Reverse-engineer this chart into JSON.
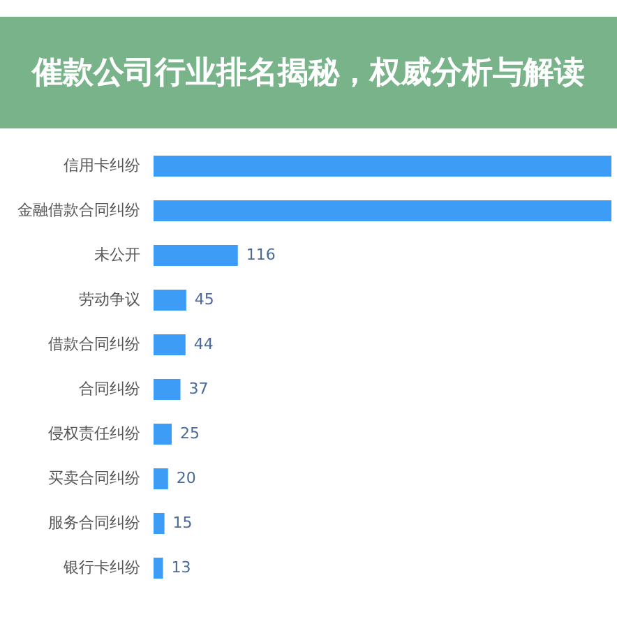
{
  "chart_data": {
    "type": "bar",
    "orientation": "horizontal",
    "title": "催款公司行业排名揭秘，权威分析与解读",
    "categories": [
      "信用卡纠纷",
      "金融借款合同纠纷",
      "未公开",
      "劳动争议",
      "借款合同纠纷",
      "合同纠纷",
      "侵权责任纠纷",
      "买卖合同纠纷",
      "服务合同纠纷",
      "银行卡纠纷"
    ],
    "values": [
      630,
      630,
      116,
      45,
      44,
      37,
      25,
      20,
      15,
      13
    ],
    "value_labels": [
      null,
      null,
      "116",
      "45",
      "44",
      "37",
      "25",
      "20",
      "15",
      "13"
    ],
    "color": "#3d9cf5",
    "xlim": [
      0,
      630
    ],
    "tick_labels": "y"
  }
}
